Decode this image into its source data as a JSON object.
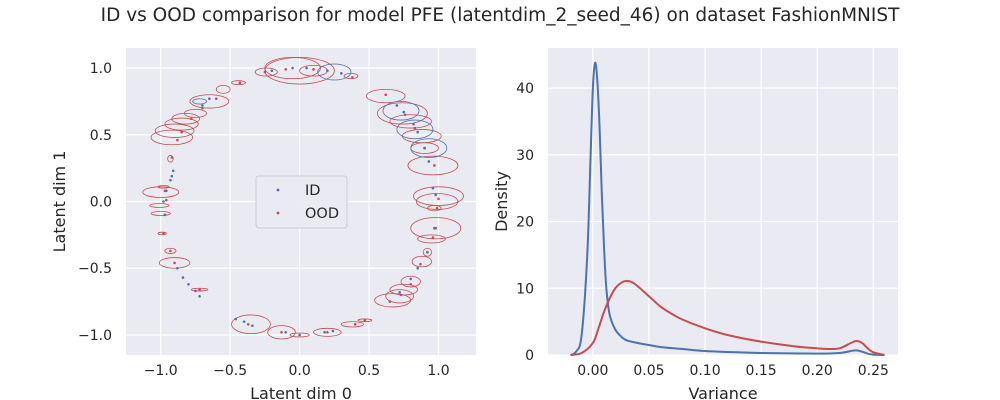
{
  "title": "ID vs OOD comparison for model PFE (latentdim_2_seed_46) on dataset FashionMNIST",
  "colors": {
    "id": "#4c72b0",
    "ood": "#c44e52",
    "panel": "#eaeaf2",
    "grid": "#ffffff"
  },
  "chart_data": [
    {
      "type": "scatter",
      "xlabel": "Latent dim 0",
      "ylabel": "Latent dim 1",
      "xlim": [
        -1.25,
        1.27
      ],
      "ylim": [
        -1.15,
        1.15
      ],
      "xticks": [
        -1.0,
        -0.5,
        0.0,
        0.5,
        1.0
      ],
      "xtick_labels": [
        "−1.0",
        "−0.5",
        "0.0",
        "0.5",
        "1.0"
      ],
      "yticks": [
        1.0,
        0.5,
        0.0,
        -0.5,
        -1.0
      ],
      "ytick_labels": [
        "1.0",
        "0.5",
        "0.0",
        "−0.5",
        "−1.0"
      ],
      "legend": {
        "placement": "center",
        "entries": [
          "ID",
          "OOD"
        ]
      },
      "grid": true,
      "series": [
        {
          "name": "ID",
          "color": "#4c72b0",
          "points": [
            [
              -0.91,
              0.23
            ],
            [
              -0.92,
              0.19
            ],
            [
              -0.93,
              0.16
            ],
            [
              -0.96,
              0.08
            ],
            [
              -0.98,
              0.0
            ],
            [
              -0.97,
              -0.1
            ],
            [
              -0.88,
              -0.5
            ],
            [
              -0.84,
              -0.57
            ],
            [
              -0.8,
              -0.62
            ],
            [
              -0.75,
              -0.67
            ],
            [
              -0.72,
              -0.71
            ],
            [
              -0.46,
              -0.88
            ],
            [
              -0.4,
              -0.9
            ],
            [
              -0.34,
              -0.93
            ],
            [
              -0.1,
              -0.98
            ],
            [
              0.0,
              -1.0
            ],
            [
              0.18,
              -0.98
            ],
            [
              0.24,
              -0.97
            ],
            [
              0.9,
              0.4
            ],
            [
              0.93,
              0.3
            ],
            [
              0.96,
              0.1
            ],
            [
              0.98,
              0.05
            ],
            [
              0.97,
              -0.2
            ],
            [
              0.92,
              -0.38
            ],
            [
              0.85,
              -0.5
            ],
            [
              0.8,
              -0.58
            ],
            [
              0.72,
              -0.68
            ],
            [
              0.85,
              0.52
            ],
            [
              0.82,
              0.58
            ],
            [
              0.75,
              0.67
            ],
            [
              0.7,
              0.72
            ],
            [
              0.3,
              0.96
            ],
            [
              0.2,
              0.98
            ],
            [
              0.05,
              1.0
            ],
            [
              -0.05,
              1.0
            ],
            [
              -0.2,
              0.98
            ],
            [
              -0.65,
              0.77
            ],
            [
              -0.7,
              0.72
            ]
          ],
          "ellipses": [
            [
              0.93,
              0.4,
              0.13,
              0.07
            ],
            [
              0.83,
              0.54,
              0.13,
              0.07
            ],
            [
              0.73,
              0.68,
              0.13,
              0.07
            ],
            [
              0.25,
              0.97,
              0.12,
              0.06
            ],
            [
              -0.72,
              0.75,
              0.05,
              0.02
            ]
          ]
        },
        {
          "name": "OOD",
          "color": "#c44e52",
          "points": [
            [
              -0.92,
              0.33
            ],
            [
              -0.97,
              0.08
            ],
            [
              -0.96,
              0.01
            ],
            [
              -0.98,
              -0.24
            ],
            [
              -0.93,
              -0.37
            ],
            [
              -0.9,
              -0.46
            ],
            [
              -0.72,
              -0.66
            ],
            [
              -0.37,
              -0.92
            ],
            [
              -0.13,
              -0.98
            ],
            [
              0.2,
              -0.98
            ],
            [
              0.4,
              -0.92
            ],
            [
              0.47,
              -0.89
            ],
            [
              0.65,
              -0.75
            ],
            [
              0.73,
              -0.7
            ],
            [
              0.8,
              -0.62
            ],
            [
              0.87,
              -0.47
            ],
            [
              0.92,
              -0.38
            ],
            [
              0.96,
              -0.27
            ],
            [
              0.98,
              -0.2
            ],
            [
              0.99,
              -0.05
            ],
            [
              1.0,
              0.02
            ],
            [
              0.97,
              0.27
            ],
            [
              0.9,
              0.4
            ],
            [
              0.83,
              0.55
            ],
            [
              0.76,
              0.65
            ],
            [
              0.62,
              0.8
            ],
            [
              0.38,
              0.93
            ],
            [
              0.1,
              0.99
            ],
            [
              -0.1,
              0.99
            ],
            [
              -0.25,
              0.97
            ],
            [
              -0.43,
              0.89
            ],
            [
              -0.6,
              0.77
            ],
            [
              -0.7,
              0.7
            ],
            [
              -0.78,
              0.62
            ],
            [
              -0.85,
              0.52
            ],
            [
              -0.88,
              0.46
            ]
          ],
          "ellipses": [
            [
              -0.92,
              0.48,
              0.15,
              0.055
            ],
            [
              -0.9,
              0.53,
              0.14,
              0.05
            ],
            [
              -0.85,
              0.58,
              0.12,
              0.045
            ],
            [
              -0.82,
              0.62,
              0.1,
              0.04
            ],
            [
              -0.75,
              0.66,
              0.08,
              0.03
            ],
            [
              -0.65,
              0.75,
              0.14,
              0.05
            ],
            [
              -0.55,
              0.84,
              0.05,
              0.03
            ],
            [
              -0.44,
              0.89,
              0.05,
              0.015
            ],
            [
              -0.24,
              0.97,
              0.08,
              0.03
            ],
            [
              -0.05,
              1.0,
              0.2,
              0.08
            ],
            [
              0.0,
              0.98,
              0.25,
              0.1
            ],
            [
              0.1,
              0.98,
              0.1,
              0.04
            ],
            [
              0.37,
              0.94,
              0.05,
              0.02
            ],
            [
              0.62,
              0.79,
              0.14,
              0.05
            ],
            [
              0.74,
              0.66,
              0.18,
              0.08
            ],
            [
              0.8,
              0.6,
              0.15,
              0.05
            ],
            [
              0.88,
              0.49,
              0.14,
              0.05
            ],
            [
              0.9,
              0.4,
              0.1,
              0.04
            ],
            [
              0.96,
              0.27,
              0.18,
              0.07
            ],
            [
              1.0,
              0.04,
              0.18,
              0.07
            ],
            [
              0.99,
              0.0,
              0.15,
              0.06
            ],
            [
              0.97,
              -0.05,
              0.05,
              0.02
            ],
            [
              0.98,
              -0.2,
              0.18,
              0.08
            ],
            [
              0.95,
              -0.28,
              0.1,
              0.03
            ],
            [
              0.88,
              -0.45,
              0.07,
              0.04
            ],
            [
              0.92,
              -0.38,
              0.03,
              0.03
            ],
            [
              0.8,
              -0.6,
              0.07,
              0.04
            ],
            [
              0.75,
              -0.66,
              0.1,
              0.04
            ],
            [
              0.72,
              -0.71,
              0.1,
              0.05
            ],
            [
              0.67,
              -0.74,
              0.13,
              0.05
            ],
            [
              0.47,
              -0.89,
              0.05,
              0.01
            ],
            [
              0.38,
              -0.92,
              0.08,
              0.02
            ],
            [
              0.2,
              -0.98,
              0.1,
              0.03
            ],
            [
              0.0,
              -1.0,
              0.07,
              0.015
            ],
            [
              -0.13,
              -0.98,
              0.1,
              0.05
            ],
            [
              -0.35,
              -0.92,
              0.14,
              0.07
            ],
            [
              -0.72,
              -0.66,
              0.06,
              0.01
            ],
            [
              -0.9,
              -0.46,
              0.11,
              0.04
            ],
            [
              -0.93,
              -0.37,
              0.04,
              0.02
            ],
            [
              -0.99,
              -0.24,
              0.03,
              0.01
            ],
            [
              -1.0,
              -0.09,
              0.07,
              0.015
            ],
            [
              -1.01,
              -0.03,
              0.07,
              0.015
            ],
            [
              -1.0,
              0.07,
              0.13,
              0.04
            ],
            [
              -0.98,
              0.11,
              0.04,
              0.01
            ],
            [
              -0.93,
              0.32,
              0.02,
              0.025
            ]
          ]
        }
      ]
    },
    {
      "type": "line",
      "xlabel": "Variance",
      "ylabel": "Density",
      "xlim": [
        -0.04,
        0.272
      ],
      "ylim": [
        0,
        46
      ],
      "xticks": [
        0.0,
        0.05,
        0.1,
        0.15,
        0.2,
        0.25
      ],
      "xtick_labels": [
        "0.00",
        "0.05",
        "0.10",
        "0.15",
        "0.20",
        "0.25"
      ],
      "yticks": [
        0,
        10,
        20,
        30,
        40
      ],
      "ytick_labels": [
        "0",
        "10",
        "20",
        "30",
        "40"
      ],
      "grid": true,
      "series": [
        {
          "color": "#4c72b0",
          "x": [
            -0.02,
            -0.015,
            -0.01,
            -0.005,
            -0.002,
            0.0,
            0.002,
            0.004,
            0.006,
            0.008,
            0.01,
            0.012,
            0.015,
            0.02,
            0.025,
            0.03,
            0.04,
            0.05,
            0.06,
            0.08,
            0.1,
            0.12,
            0.15,
            0.2,
            0.22,
            0.23,
            0.235,
            0.24,
            0.245,
            0.25,
            0.26
          ],
          "y": [
            0,
            0.5,
            3,
            15,
            30,
            40,
            43.8,
            41,
            34,
            24,
            16,
            10,
            6,
            3.8,
            2.8,
            2.2,
            1.8,
            1.5,
            1.2,
            0.9,
            0.6,
            0.45,
            0.3,
            0.2,
            0.3,
            0.6,
            0.7,
            0.5,
            0.2,
            0.05,
            0
          ]
        },
        {
          "color": "#c44e52",
          "x": [
            -0.02,
            -0.01,
            0.0,
            0.005,
            0.01,
            0.015,
            0.02,
            0.025,
            0.03,
            0.035,
            0.04,
            0.05,
            0.06,
            0.07,
            0.08,
            0.1,
            0.12,
            0.15,
            0.18,
            0.2,
            0.21,
            0.22,
            0.23,
            0.235,
            0.24,
            0.245,
            0.25,
            0.26
          ],
          "y": [
            0,
            0.3,
            1.8,
            4,
            6.5,
            8.5,
            10,
            10.8,
            11.1,
            10.9,
            10.3,
            8.8,
            7.3,
            6.2,
            5.3,
            4.0,
            3.0,
            2.0,
            1.3,
            1.0,
            0.9,
            1.0,
            1.8,
            2.1,
            1.8,
            1.0,
            0.4,
            0
          ]
        }
      ]
    }
  ]
}
